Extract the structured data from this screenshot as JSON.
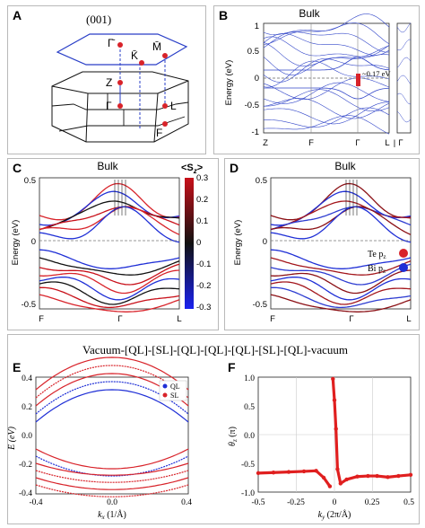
{
  "figure": {
    "panels": {
      "A": {
        "label": "A",
        "surface_title": "(001)",
        "surface_points": [
          "Γ̄",
          "K̄",
          "M̄"
        ],
        "bulk_points": [
          "Z",
          "Γ",
          "L",
          "F"
        ]
      },
      "B": {
        "label": "B",
        "title": "Bulk",
        "ylabel": "Energy (eV)",
        "yticks": [
          "1",
          "0.5",
          "0",
          "-0.5",
          "-1"
        ],
        "xticks": [
          "Z",
          "F",
          "Γ",
          "L"
        ],
        "side_label": "Γ",
        "side_prefix": "|",
        "gap_annotation": "~0.17 eV"
      },
      "C": {
        "label": "C",
        "title": "Bulk",
        "ylabel": "Energy (eV)",
        "yticks": [
          "0.5",
          "0",
          "-0.5"
        ],
        "xticks": [
          "F",
          "Γ",
          "L"
        ],
        "colorbar_title": "<S",
        "colorbar_title_sub": "z",
        "colorbar_title_end": ">",
        "colorbar_ticks": [
          "0.3",
          "0.2",
          "0.1",
          "0",
          "-0.1",
          "-0.2",
          "-0.3"
        ]
      },
      "D": {
        "label": "D",
        "title": "Bulk",
        "ylabel": "Energy (eV)",
        "yticks": [
          "0.5",
          "0",
          "-0.5"
        ],
        "xticks": [
          "F",
          "Γ",
          "L"
        ],
        "legend": [
          {
            "text": "Te p",
            "sub": "z",
            "color": "#d8232a"
          },
          {
            "text": "Bi p",
            "sub": "z",
            "color": "#1f2fd6"
          }
        ]
      },
      "heading": "Vacuum-[QL]-[SL]-[QL]-[QL]-[QL]-[SL]-[QL]-vacuum",
      "E": {
        "label": "E",
        "ylabel": "E (eV)",
        "xlabel_main": "k",
        "xlabel_sub": "x",
        "xlabel_unit": " (1/Å)",
        "yticks": [
          "0.4",
          "0.2",
          "0.0",
          "-0.2",
          "-0.4"
        ],
        "xticks": [
          "-0.4",
          "0.0",
          "0.4"
        ],
        "legend": [
          {
            "text": "QL",
            "color": "#1f2fd6"
          },
          {
            "text": "SL",
            "color": "#d8232a"
          }
        ]
      },
      "F": {
        "label": "F",
        "ylabel_main": "θ",
        "ylabel_sub": "z",
        "ylabel_unit": " (π)",
        "xlabel_main": "k",
        "xlabel_sub": "y",
        "xlabel_unit": " (2π/Å)",
        "yticks": [
          "1.0",
          "0.5",
          "0.0",
          "-0.5",
          "-1.0"
        ],
        "xticks": [
          "-0.5",
          "-0.25",
          "0",
          "0.25",
          "0.5"
        ]
      }
    },
    "chart_data": {
      "type": "line",
      "title": "",
      "xlabel": "k_y (2π/Å)",
      "ylabel": "θ_z (π)",
      "xlim": [
        -0.5,
        0.5
      ],
      "ylim": [
        -1.0,
        1.0
      ],
      "series": [
        {
          "x": [
            -0.5,
            -0.4,
            -0.3,
            -0.2,
            -0.12,
            -0.07,
            -0.03,
            -0.01,
            0.0,
            0.01,
            0.02,
            0.04,
            0.08,
            0.15,
            0.22,
            0.28,
            0.35,
            0.42,
            0.5
          ],
          "y": [
            -0.67,
            -0.66,
            -0.65,
            -0.64,
            -0.63,
            -0.75,
            -0.9,
            0.97,
            0.6,
            0.1,
            -0.6,
            -0.85,
            -0.78,
            -0.73,
            -0.72,
            -0.72,
            -0.74,
            -0.72,
            -0.7
          ]
        }
      ]
    }
  }
}
